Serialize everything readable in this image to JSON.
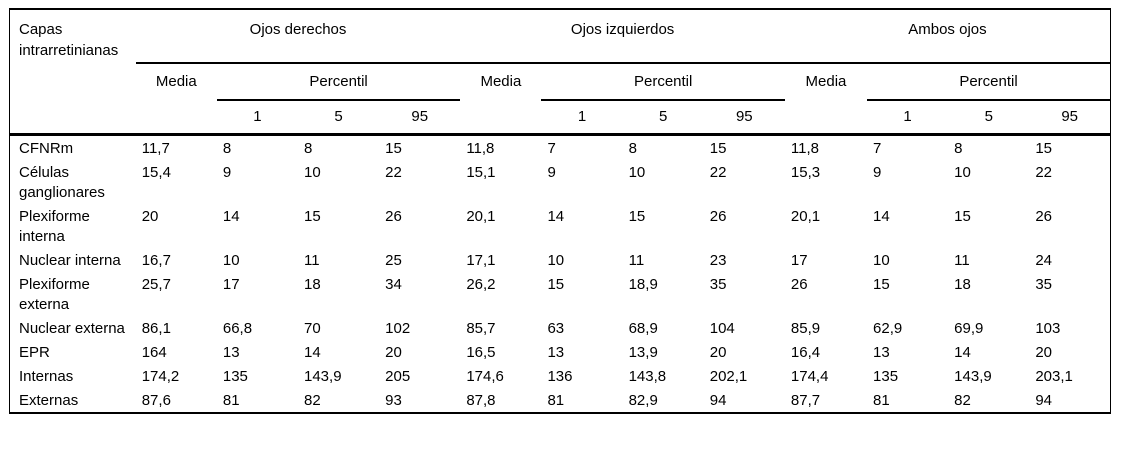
{
  "colors": {
    "background": "#ffffff",
    "text": "#000000",
    "border": "#000000"
  },
  "table": {
    "corner_header": "Capas intrarretinianas",
    "groups": [
      {
        "label": "Ojos derechos"
      },
      {
        "label": "Ojos izquierdos"
      },
      {
        "label": "Ambos ojos"
      }
    ],
    "subheaders": {
      "media": "Media",
      "percentil": "Percentil"
    },
    "percentile_columns": [
      "1",
      "5",
      "95"
    ],
    "rows": [
      {
        "label": "CFNRm",
        "ojos_derechos": {
          "media": "11,7",
          "p1": "8",
          "p5": "8",
          "p95": "15"
        },
        "ojos_izquierdos": {
          "media": "11,8",
          "p1": "7",
          "p5": "8",
          "p95": "15"
        },
        "ambos_ojos": {
          "media": "11,8",
          "p1": "7",
          "p5": "8",
          "p95": "15"
        }
      },
      {
        "label": "Células ganglionares",
        "ojos_derechos": {
          "media": "15,4",
          "p1": "9",
          "p5": "10",
          "p95": "22"
        },
        "ojos_izquierdos": {
          "media": "15,1",
          "p1": "9",
          "p5": "10",
          "p95": "22"
        },
        "ambos_ojos": {
          "media": "15,3",
          "p1": "9",
          "p5": "10",
          "p95": "22"
        }
      },
      {
        "label": "Plexiforme interna",
        "ojos_derechos": {
          "media": "20",
          "p1": "14",
          "p5": "15",
          "p95": "26"
        },
        "ojos_izquierdos": {
          "media": "20,1",
          "p1": "14",
          "p5": "15",
          "p95": "26"
        },
        "ambos_ojos": {
          "media": "20,1",
          "p1": "14",
          "p5": "15",
          "p95": "26"
        }
      },
      {
        "label": "Nuclear interna",
        "ojos_derechos": {
          "media": "16,7",
          "p1": "10",
          "p5": "11",
          "p95": "25"
        },
        "ojos_izquierdos": {
          "media": "17,1",
          "p1": "10",
          "p5": "11",
          "p95": "23"
        },
        "ambos_ojos": {
          "media": "17",
          "p1": "10",
          "p5": "11",
          "p95": "24"
        }
      },
      {
        "label": "Plexiforme externa",
        "ojos_derechos": {
          "media": "25,7",
          "p1": "17",
          "p5": "18",
          "p95": "34"
        },
        "ojos_izquierdos": {
          "media": "26,2",
          "p1": "15",
          "p5": "18,9",
          "p95": "35"
        },
        "ambos_ojos": {
          "media": "26",
          "p1": "15",
          "p5": "18",
          "p95": "35"
        }
      },
      {
        "label": "Nuclear externa",
        "ojos_derechos": {
          "media": "86,1",
          "p1": "66,8",
          "p5": "70",
          "p95": "102"
        },
        "ojos_izquierdos": {
          "media": "85,7",
          "p1": "63",
          "p5": "68,9",
          "p95": "104"
        },
        "ambos_ojos": {
          "media": "85,9",
          "p1": "62,9",
          "p5": "69,9",
          "p95": "103"
        }
      },
      {
        "label": "EPR",
        "ojos_derechos": {
          "media": "164",
          "p1": "13",
          "p5": "14",
          "p95": "20"
        },
        "ojos_izquierdos": {
          "media": "16,5",
          "p1": "13",
          "p5": "13,9",
          "p95": "20"
        },
        "ambos_ojos": {
          "media": "16,4",
          "p1": "13",
          "p5": "14",
          "p95": "20"
        }
      },
      {
        "label": "Internas",
        "ojos_derechos": {
          "media": "174,2",
          "p1": "135",
          "p5": "143,9",
          "p95": "205"
        },
        "ojos_izquierdos": {
          "media": "174,6",
          "p1": "136",
          "p5": "143,8",
          "p95": "202,1"
        },
        "ambos_ojos": {
          "media": "174,4",
          "p1": "135",
          "p5": "143,9",
          "p95": "203,1"
        }
      },
      {
        "label": "Externas",
        "ojos_derechos": {
          "media": "87,6",
          "p1": "81",
          "p5": "82",
          "p95": "93"
        },
        "ojos_izquierdos": {
          "media": "87,8",
          "p1": "81",
          "p5": "82,9",
          "p95": "94"
        },
        "ambos_ojos": {
          "media": "87,7",
          "p1": "81",
          "p5": "82",
          "p95": "94"
        }
      }
    ]
  }
}
